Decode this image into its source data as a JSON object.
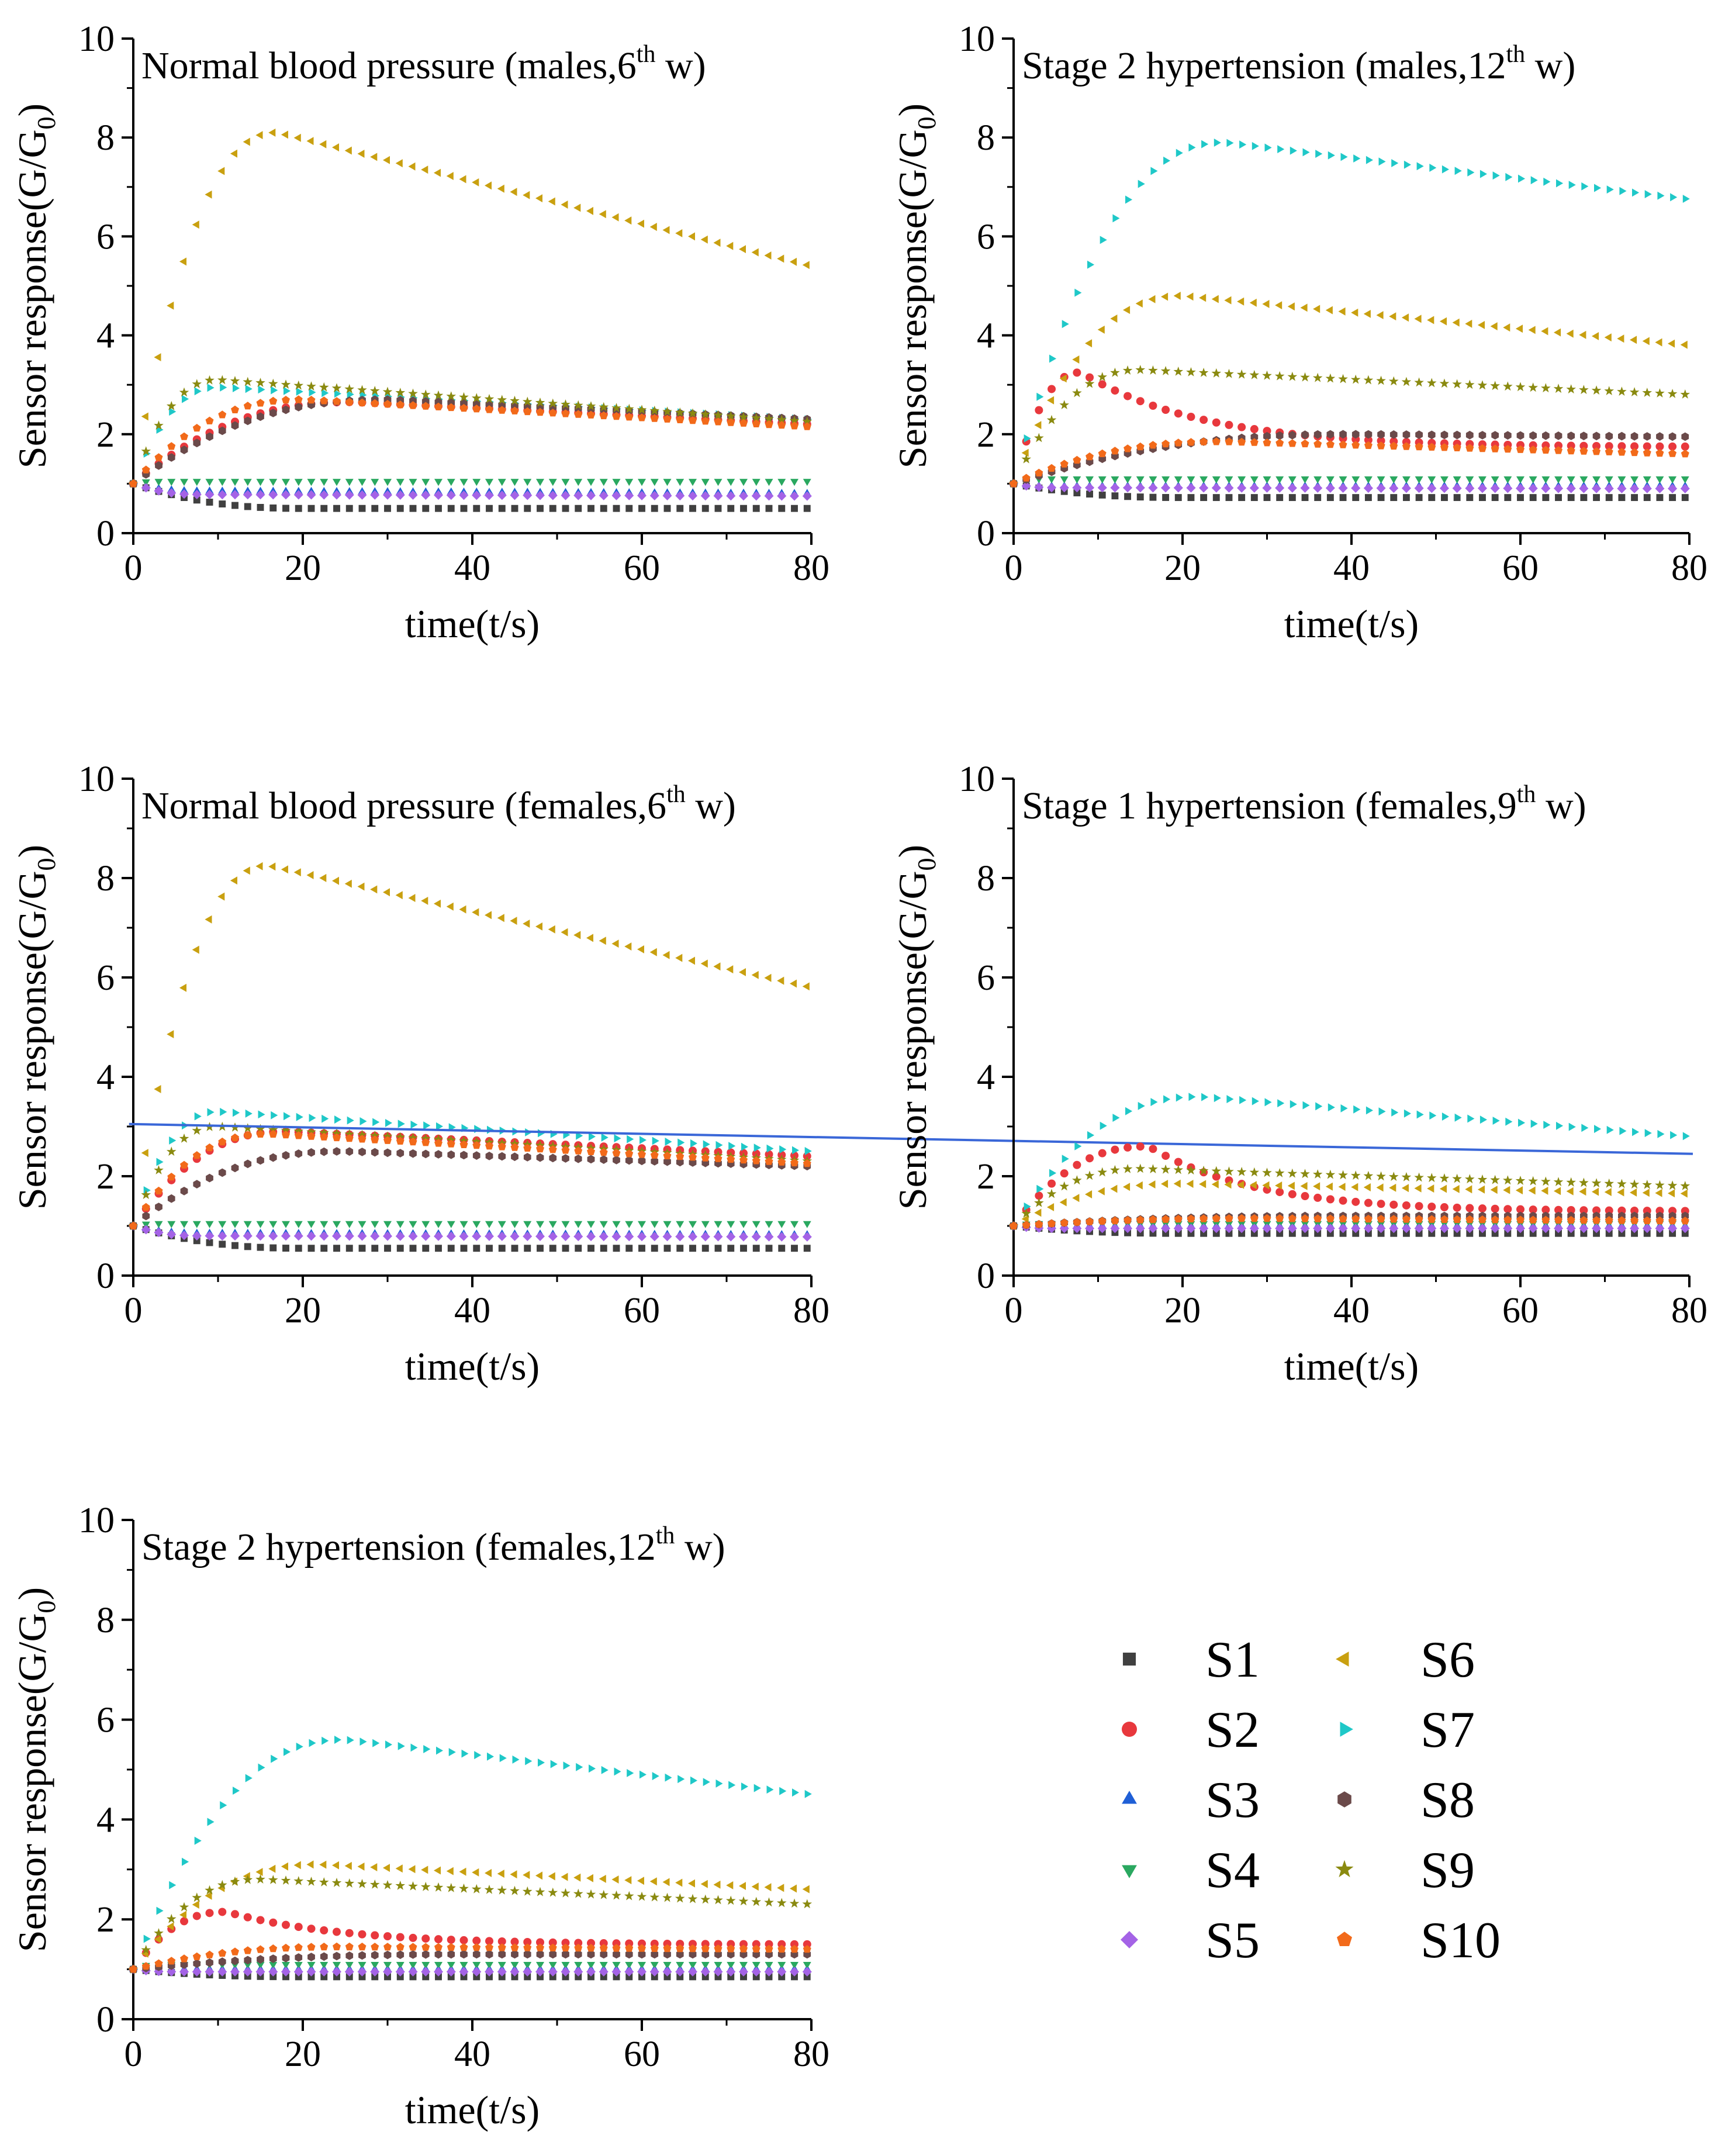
{
  "figure": {
    "xlabel": "time(t/s)",
    "ylabel": "Sensor response(G/G",
    "ylabel_sub": "0",
    "ylabel_end": ")",
    "x_ticks": [
      "0",
      "20",
      "40",
      "60",
      "80"
    ],
    "y_ticks": [
      "0",
      "2",
      "4",
      "6",
      "8",
      "10"
    ]
  },
  "legend": {
    "items": [
      {
        "id": "S1",
        "label": "S1",
        "marker": "square-marker",
        "color": "#404040"
      },
      {
        "id": "S2",
        "label": "S2",
        "marker": "circle-marker",
        "color": "#e8383d"
      },
      {
        "id": "S3",
        "label": "S3",
        "marker": "triangle-up-marker",
        "color": "#1f5fd6"
      },
      {
        "id": "S4",
        "label": "S4",
        "marker": "triangle-down-marker",
        "color": "#2aa860"
      },
      {
        "id": "S5",
        "label": "S5",
        "marker": "diamond-marker",
        "color": "#a463e6"
      },
      {
        "id": "S6",
        "label": "S6",
        "marker": "triangle-left-marker",
        "color": "#c9a010"
      },
      {
        "id": "S7",
        "label": "S7",
        "marker": "triangle-right-marker",
        "color": "#1fc8c8"
      },
      {
        "id": "S8",
        "label": "S8",
        "marker": "hexagon-marker",
        "color": "#6b4a4a"
      },
      {
        "id": "S9",
        "label": "S9",
        "marker": "star-marker",
        "color": "#8a8a10"
      },
      {
        "id": "S10",
        "label": "S10",
        "marker": "pentagon-marker",
        "color": "#f26a1a"
      }
    ]
  },
  "chart_data": [
    {
      "type": "scatter",
      "title_main": "Normal blood pressure (males,6",
      "title_sup": "th",
      "title_end": " w)",
      "xlabel": "time(t/s)",
      "ylabel": "Sensor response(G/G0)",
      "xlim": [
        0,
        80
      ],
      "ylim": [
        0,
        10
      ],
      "grid": false,
      "series": [
        {
          "id": "S1",
          "peak": 0.5,
          "tp": 20,
          "end": 0.5
        },
        {
          "id": "S2",
          "peak": 2.65,
          "tp": 26,
          "end": 2.2
        },
        {
          "id": "S3",
          "peak": 0.85,
          "tp": 8,
          "end": 0.8
        },
        {
          "id": "S4",
          "peak": 1.05,
          "tp": 3,
          "end": 1.05
        },
        {
          "id": "S5",
          "peak": 0.78,
          "tp": 8,
          "end": 0.75
        },
        {
          "id": "S6",
          "peak": 8.1,
          "tp": 17,
          "end": 5.4
        },
        {
          "id": "S7",
          "peak": 2.95,
          "tp": 10,
          "end": 2.3
        },
        {
          "id": "S8",
          "peak": 2.7,
          "tp": 30,
          "end": 2.3
        },
        {
          "id": "S9",
          "peak": 3.1,
          "tp": 10,
          "end": 2.25
        },
        {
          "id": "S10",
          "peak": 2.7,
          "tp": 20,
          "end": 2.15
        }
      ]
    },
    {
      "type": "scatter",
      "title_main": "Stage 2 hypertension (males,12",
      "title_sup": "th",
      "title_end": " w)",
      "xlabel": "time(t/s)",
      "ylabel": "Sensor response(G/G0)",
      "xlim": [
        0,
        80
      ],
      "ylim": [
        0,
        10
      ],
      "grid": false,
      "series": [
        {
          "id": "S1",
          "peak": 0.72,
          "tp": 20,
          "end": 0.72
        },
        {
          "id": "S2",
          "peak": 3.25,
          "tp": 8,
          "end": 1.75,
          "decay": "fast"
        },
        {
          "id": "S3",
          "peak": 0.95,
          "tp": 5,
          "end": 0.95
        },
        {
          "id": "S4",
          "peak": 1.1,
          "tp": 3,
          "end": 1.1
        },
        {
          "id": "S5",
          "peak": 0.92,
          "tp": 5,
          "end": 0.9
        },
        {
          "id": "S6",
          "peak": 4.8,
          "tp": 20,
          "end": 3.8
        },
        {
          "id": "S7",
          "peak": 7.9,
          "tp": 25,
          "end": 6.75
        },
        {
          "id": "S8",
          "peak": 2.0,
          "tp": 40,
          "end": 1.95
        },
        {
          "id": "S9",
          "peak": 3.3,
          "tp": 15,
          "end": 2.8
        },
        {
          "id": "S10",
          "peak": 1.85,
          "tp": 25,
          "end": 1.6
        }
      ]
    },
    {
      "type": "scatter",
      "title_main": "Normal blood pressure (females,6",
      "title_sup": "th",
      "title_end": " w)",
      "xlabel": "time(t/s)",
      "ylabel": "Sensor response(G/G0)",
      "xlim": [
        0,
        80
      ],
      "ylim": [
        0,
        10
      ],
      "grid": false,
      "series": [
        {
          "id": "S1",
          "peak": 0.55,
          "tp": 20,
          "end": 0.55
        },
        {
          "id": "S2",
          "peak": 2.9,
          "tp": 18,
          "end": 2.4
        },
        {
          "id": "S3",
          "peak": 0.85,
          "tp": 8,
          "end": 0.82
        },
        {
          "id": "S4",
          "peak": 1.05,
          "tp": 3,
          "end": 1.05
        },
        {
          "id": "S5",
          "peak": 0.8,
          "tp": 8,
          "end": 0.78
        },
        {
          "id": "S6",
          "peak": 8.25,
          "tp": 16,
          "end": 5.8
        },
        {
          "id": "S7",
          "peak": 3.3,
          "tp": 10,
          "end": 2.5
        },
        {
          "id": "S8",
          "peak": 2.5,
          "tp": 25,
          "end": 2.2
        },
        {
          "id": "S9",
          "peak": 3.0,
          "tp": 10,
          "end": 2.3
        },
        {
          "id": "S10",
          "peak": 2.85,
          "tp": 16,
          "end": 2.25
        }
      ],
      "overlay_line": {
        "x1": -0.5,
        "y1": 3.05,
        "x2": 184,
        "y2": 2.45,
        "color": "#3a67d8"
      }
    },
    {
      "type": "scatter",
      "title_main": "Stage 1 hypertension (females,9",
      "title_sup": "th",
      "title_end": " w)",
      "xlabel": "time(t/s)",
      "ylabel": "Sensor response(G/G0)",
      "xlim": [
        0,
        80
      ],
      "ylim": [
        0,
        10
      ],
      "grid": false,
      "series": [
        {
          "id": "S1",
          "peak": 0.85,
          "tp": 20,
          "end": 0.85
        },
        {
          "id": "S2",
          "peak": 2.6,
          "tp": 16,
          "end": 1.3,
          "decay": "fast"
        },
        {
          "id": "S3",
          "peak": 1.0,
          "tp": 5,
          "end": 1.0
        },
        {
          "id": "S4",
          "peak": 1.05,
          "tp": 3,
          "end": 1.05
        },
        {
          "id": "S5",
          "peak": 0.95,
          "tp": 5,
          "end": 0.95
        },
        {
          "id": "S6",
          "peak": 1.85,
          "tp": 20,
          "end": 1.65
        },
        {
          "id": "S7",
          "peak": 3.6,
          "tp": 22,
          "end": 2.8
        },
        {
          "id": "S8",
          "peak": 1.2,
          "tp": 40,
          "end": 1.2
        },
        {
          "id": "S9",
          "peak": 2.15,
          "tp": 15,
          "end": 1.8
        },
        {
          "id": "S10",
          "peak": 1.15,
          "tp": 30,
          "end": 1.1
        }
      ]
    },
    {
      "type": "scatter",
      "title_main": "Stage 2 hypertension (females,12",
      "title_sup": "th",
      "title_end": " w)",
      "xlabel": "time(t/s)",
      "ylabel": "Sensor response(G/G0)",
      "xlim": [
        0,
        80
      ],
      "ylim": [
        0,
        10
      ],
      "grid": false,
      "series": [
        {
          "id": "S1",
          "peak": 0.85,
          "tp": 20,
          "end": 0.85
        },
        {
          "id": "S2",
          "peak": 2.15,
          "tp": 11,
          "end": 1.5,
          "decay": "fast"
        },
        {
          "id": "S3",
          "peak": 1.0,
          "tp": 5,
          "end": 1.0
        },
        {
          "id": "S4",
          "peak": 1.1,
          "tp": 3,
          "end": 1.1
        },
        {
          "id": "S5",
          "peak": 0.95,
          "tp": 5,
          "end": 0.95
        },
        {
          "id": "S6",
          "peak": 3.1,
          "tp": 22,
          "end": 2.6
        },
        {
          "id": "S7",
          "peak": 5.6,
          "tp": 25,
          "end": 4.5
        },
        {
          "id": "S8",
          "peak": 1.3,
          "tp": 40,
          "end": 1.3
        },
        {
          "id": "S9",
          "peak": 2.8,
          "tp": 15,
          "end": 2.3
        },
        {
          "id": "S10",
          "peak": 1.45,
          "tp": 25,
          "end": 1.4
        }
      ]
    }
  ]
}
